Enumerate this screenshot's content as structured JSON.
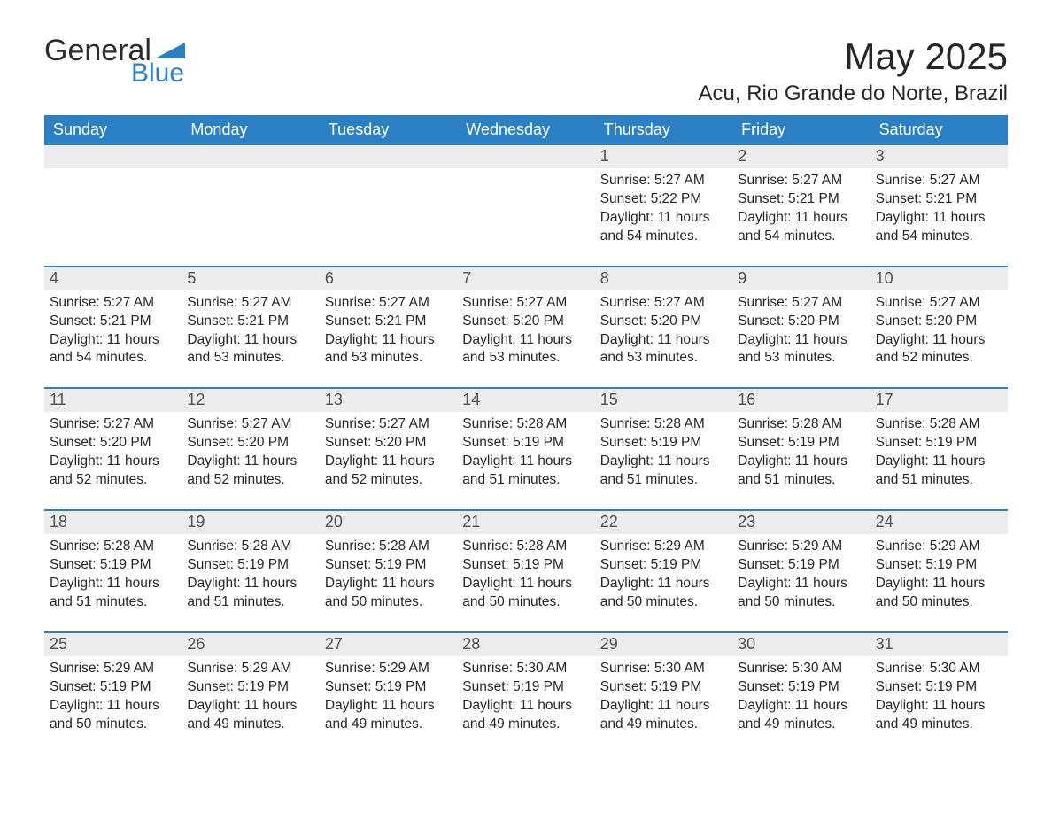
{
  "logo": {
    "general": "General",
    "blue": "Blue",
    "brand_color": "#2b7fc3"
  },
  "title": "May 2025",
  "location": "Acu, Rio Grande do Norte, Brazil",
  "colors": {
    "header_bg": "#2b7fc3",
    "header_text": "#ffffff",
    "daynum_bg": "#ececec",
    "daynum_text": "#505050",
    "body_text": "#262626",
    "rule": "#2b7fc3",
    "page_bg": "#ffffff"
  },
  "days_of_week": [
    "Sunday",
    "Monday",
    "Tuesday",
    "Wednesday",
    "Thursday",
    "Friday",
    "Saturday"
  ],
  "weeks": [
    [
      {
        "blank": true
      },
      {
        "blank": true
      },
      {
        "blank": true
      },
      {
        "blank": true
      },
      {
        "n": "1",
        "sunrise": "5:27 AM",
        "sunset": "5:22 PM",
        "daylight": "11 hours and 54 minutes."
      },
      {
        "n": "2",
        "sunrise": "5:27 AM",
        "sunset": "5:21 PM",
        "daylight": "11 hours and 54 minutes."
      },
      {
        "n": "3",
        "sunrise": "5:27 AM",
        "sunset": "5:21 PM",
        "daylight": "11 hours and 54 minutes."
      }
    ],
    [
      {
        "n": "4",
        "sunrise": "5:27 AM",
        "sunset": "5:21 PM",
        "daylight": "11 hours and 54 minutes."
      },
      {
        "n": "5",
        "sunrise": "5:27 AM",
        "sunset": "5:21 PM",
        "daylight": "11 hours and 53 minutes."
      },
      {
        "n": "6",
        "sunrise": "5:27 AM",
        "sunset": "5:21 PM",
        "daylight": "11 hours and 53 minutes."
      },
      {
        "n": "7",
        "sunrise": "5:27 AM",
        "sunset": "5:20 PM",
        "daylight": "11 hours and 53 minutes."
      },
      {
        "n": "8",
        "sunrise": "5:27 AM",
        "sunset": "5:20 PM",
        "daylight": "11 hours and 53 minutes."
      },
      {
        "n": "9",
        "sunrise": "5:27 AM",
        "sunset": "5:20 PM",
        "daylight": "11 hours and 53 minutes."
      },
      {
        "n": "10",
        "sunrise": "5:27 AM",
        "sunset": "5:20 PM",
        "daylight": "11 hours and 52 minutes."
      }
    ],
    [
      {
        "n": "11",
        "sunrise": "5:27 AM",
        "sunset": "5:20 PM",
        "daylight": "11 hours and 52 minutes."
      },
      {
        "n": "12",
        "sunrise": "5:27 AM",
        "sunset": "5:20 PM",
        "daylight": "11 hours and 52 minutes."
      },
      {
        "n": "13",
        "sunrise": "5:27 AM",
        "sunset": "5:20 PM",
        "daylight": "11 hours and 52 minutes."
      },
      {
        "n": "14",
        "sunrise": "5:28 AM",
        "sunset": "5:19 PM",
        "daylight": "11 hours and 51 minutes."
      },
      {
        "n": "15",
        "sunrise": "5:28 AM",
        "sunset": "5:19 PM",
        "daylight": "11 hours and 51 minutes."
      },
      {
        "n": "16",
        "sunrise": "5:28 AM",
        "sunset": "5:19 PM",
        "daylight": "11 hours and 51 minutes."
      },
      {
        "n": "17",
        "sunrise": "5:28 AM",
        "sunset": "5:19 PM",
        "daylight": "11 hours and 51 minutes."
      }
    ],
    [
      {
        "n": "18",
        "sunrise": "5:28 AM",
        "sunset": "5:19 PM",
        "daylight": "11 hours and 51 minutes."
      },
      {
        "n": "19",
        "sunrise": "5:28 AM",
        "sunset": "5:19 PM",
        "daylight": "11 hours and 51 minutes."
      },
      {
        "n": "20",
        "sunrise": "5:28 AM",
        "sunset": "5:19 PM",
        "daylight": "11 hours and 50 minutes."
      },
      {
        "n": "21",
        "sunrise": "5:28 AM",
        "sunset": "5:19 PM",
        "daylight": "11 hours and 50 minutes."
      },
      {
        "n": "22",
        "sunrise": "5:29 AM",
        "sunset": "5:19 PM",
        "daylight": "11 hours and 50 minutes."
      },
      {
        "n": "23",
        "sunrise": "5:29 AM",
        "sunset": "5:19 PM",
        "daylight": "11 hours and 50 minutes."
      },
      {
        "n": "24",
        "sunrise": "5:29 AM",
        "sunset": "5:19 PM",
        "daylight": "11 hours and 50 minutes."
      }
    ],
    [
      {
        "n": "25",
        "sunrise": "5:29 AM",
        "sunset": "5:19 PM",
        "daylight": "11 hours and 50 minutes."
      },
      {
        "n": "26",
        "sunrise": "5:29 AM",
        "sunset": "5:19 PM",
        "daylight": "11 hours and 49 minutes."
      },
      {
        "n": "27",
        "sunrise": "5:29 AM",
        "sunset": "5:19 PM",
        "daylight": "11 hours and 49 minutes."
      },
      {
        "n": "28",
        "sunrise": "5:30 AM",
        "sunset": "5:19 PM",
        "daylight": "11 hours and 49 minutes."
      },
      {
        "n": "29",
        "sunrise": "5:30 AM",
        "sunset": "5:19 PM",
        "daylight": "11 hours and 49 minutes."
      },
      {
        "n": "30",
        "sunrise": "5:30 AM",
        "sunset": "5:19 PM",
        "daylight": "11 hours and 49 minutes."
      },
      {
        "n": "31",
        "sunrise": "5:30 AM",
        "sunset": "5:19 PM",
        "daylight": "11 hours and 49 minutes."
      }
    ]
  ],
  "labels": {
    "sunrise": "Sunrise: ",
    "sunset": "Sunset: ",
    "daylight": "Daylight: "
  }
}
